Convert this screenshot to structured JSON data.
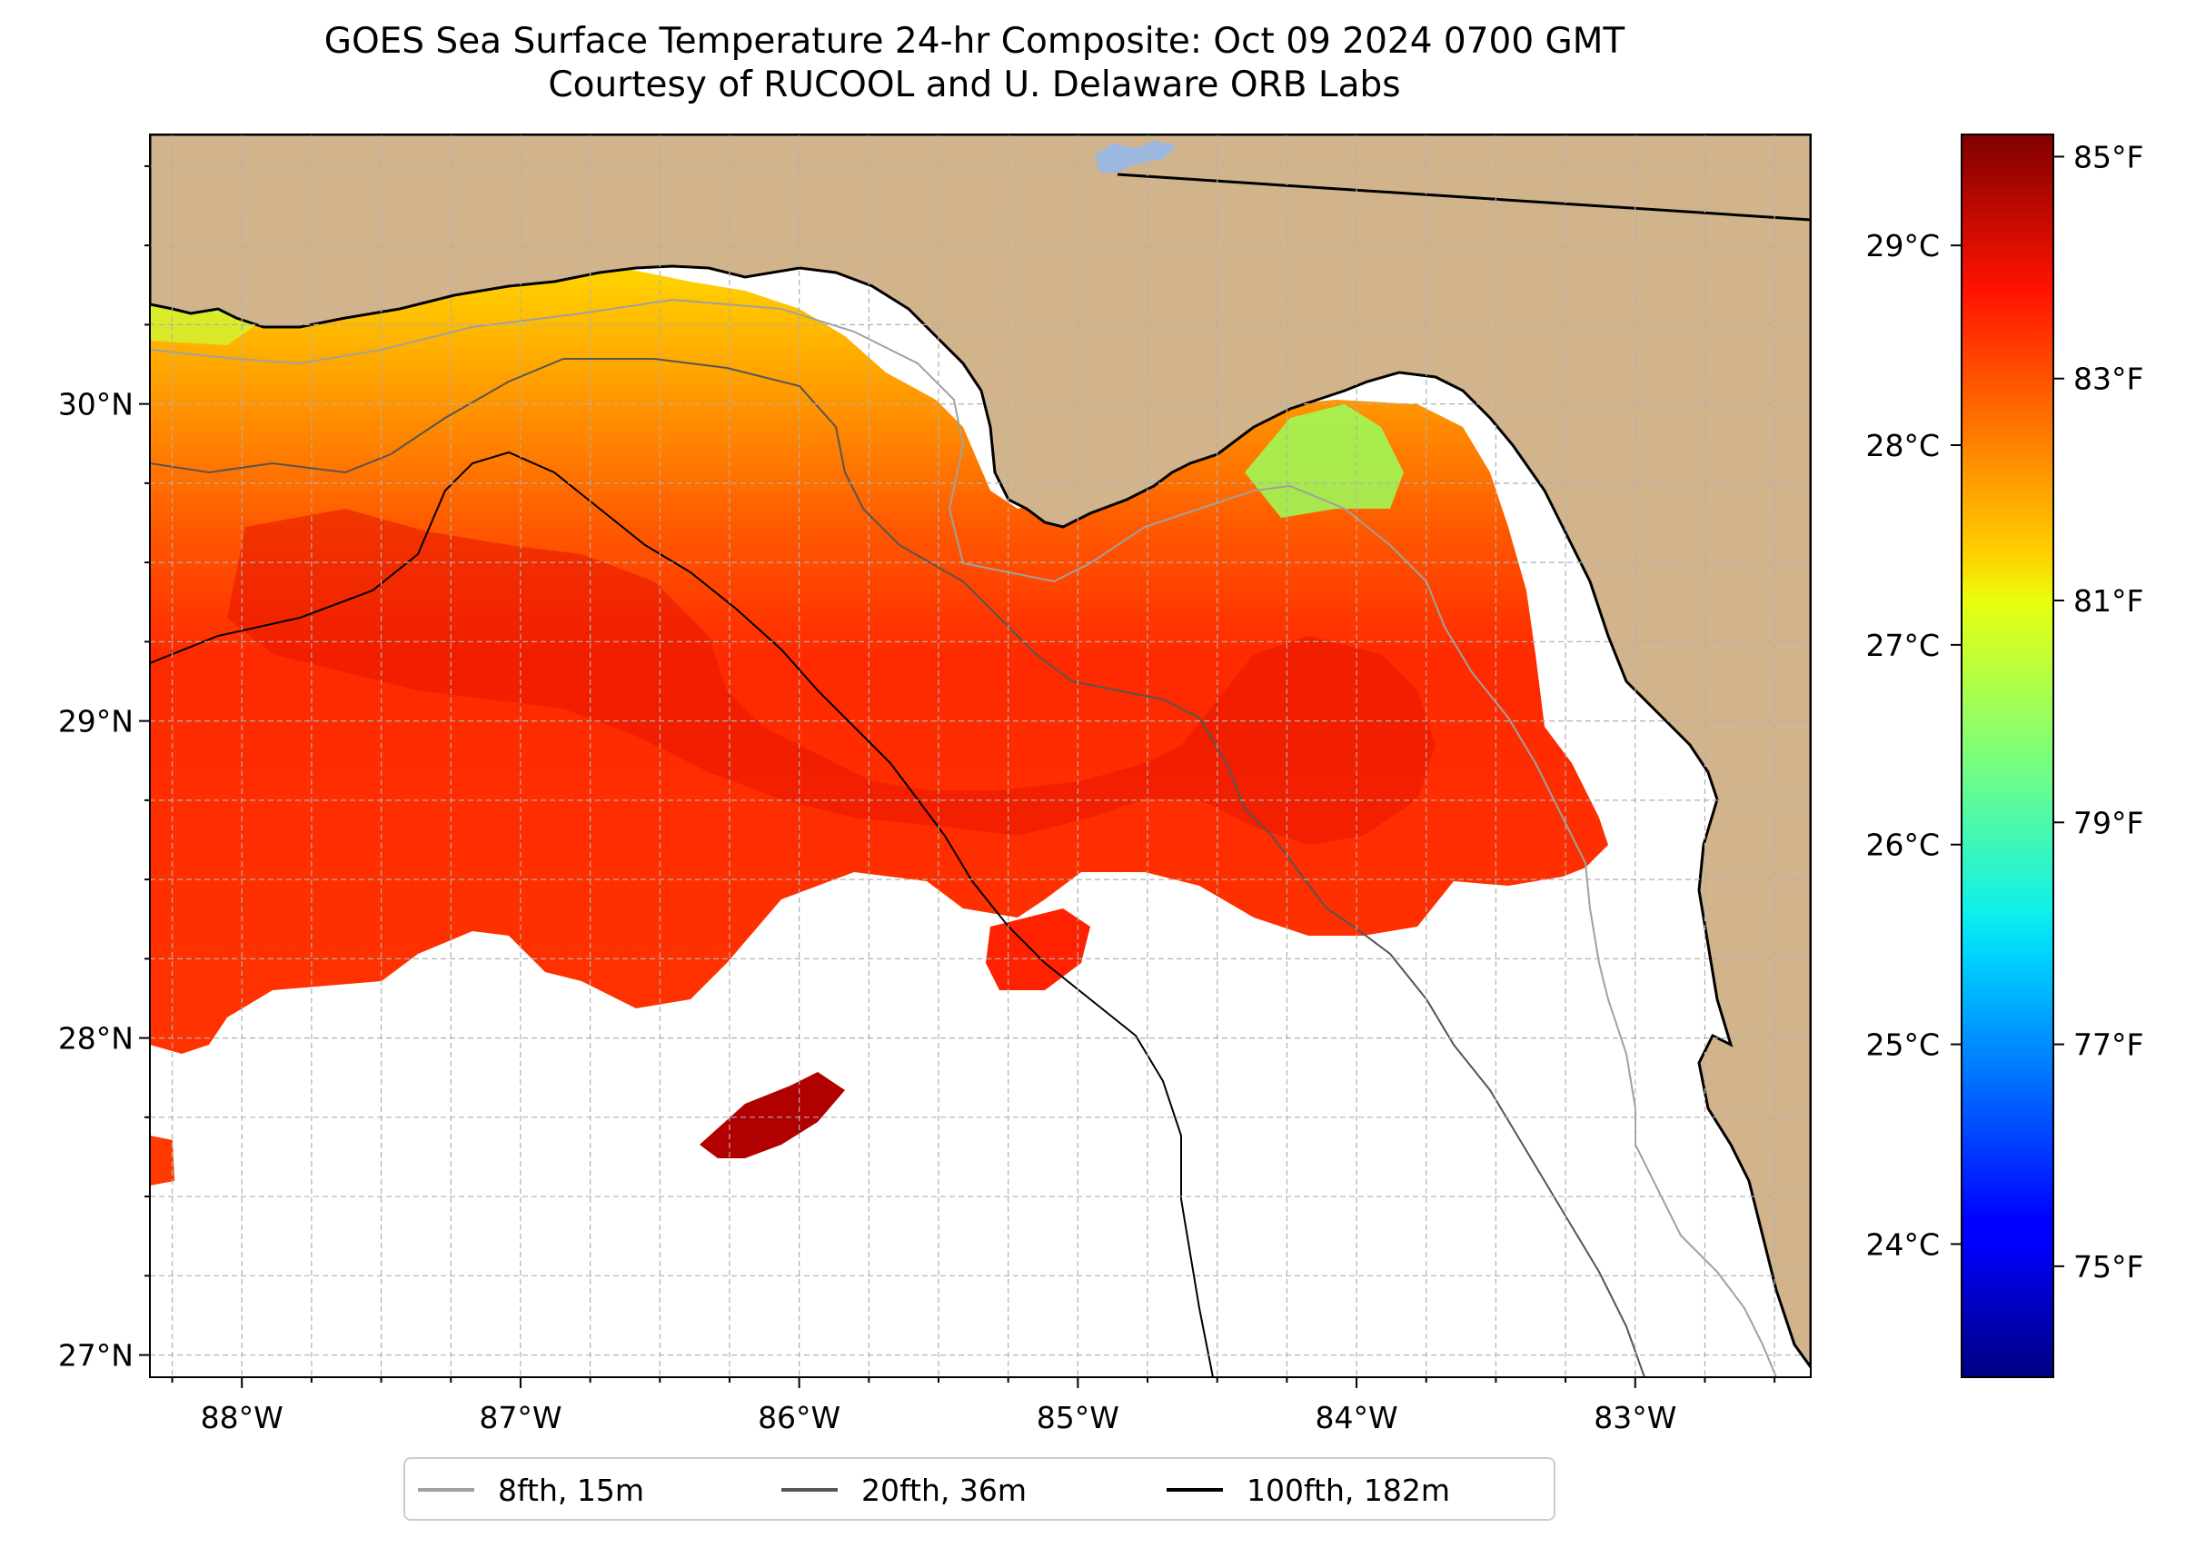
{
  "title": {
    "line1": "GOES Sea Surface Temperature 24-hr Composite: Oct 09 2024 0700 GMT",
    "line2": "Courtesy of RUCOOL and U. Delaware ORB Labs"
  },
  "map": {
    "extent": {
      "lon": [
        -88.33,
        -82.37
      ],
      "lat": [
        26.93,
        30.85
      ]
    },
    "lon_ticks": [
      {
        "value": -88,
        "label": "88°W"
      },
      {
        "value": -87,
        "label": "87°W"
      },
      {
        "value": -86,
        "label": "86°W"
      },
      {
        "value": -85,
        "label": "85°W"
      },
      {
        "value": -84,
        "label": "84°W"
      },
      {
        "value": -83,
        "label": "83°W"
      }
    ],
    "lat_ticks": [
      {
        "value": 27,
        "label": "27°N"
      },
      {
        "value": 28,
        "label": "28°N"
      },
      {
        "value": 29,
        "label": "29°N"
      },
      {
        "value": 30,
        "label": "30°N"
      }
    ],
    "grid": true,
    "colors": {
      "land": "#D2B48C",
      "ocean_nodata": "#ffffff",
      "lake": "#9DB8E0",
      "grid": "#b0b0b0"
    }
  },
  "colorbar": {
    "colormap": "jet",
    "range_F": [
      74,
      85.2
    ],
    "fahrenheit_ticks": [
      {
        "value": 75,
        "label": "75°F"
      },
      {
        "value": 77,
        "label": "77°F"
      },
      {
        "value": 79,
        "label": "79°F"
      },
      {
        "value": 81,
        "label": "81°F"
      },
      {
        "value": 83,
        "label": "83°F"
      },
      {
        "value": 85,
        "label": "85°F"
      }
    ],
    "celsius_ticks": [
      {
        "value": 24,
        "label": "24°C"
      },
      {
        "value": 25,
        "label": "25°C"
      },
      {
        "value": 26,
        "label": "26°C"
      },
      {
        "value": 27,
        "label": "27°C"
      },
      {
        "value": 28,
        "label": "28°C"
      },
      {
        "value": 29,
        "label": "29°C"
      }
    ]
  },
  "legend": {
    "location": "bottom-center",
    "entries": [
      {
        "label": "8fth, 15m",
        "color": "#a0a0a0"
      },
      {
        "label": "20fth, 36m",
        "color": "#555555"
      },
      {
        "label": "100fth, 182m",
        "color": "#000000"
      }
    ]
  }
}
